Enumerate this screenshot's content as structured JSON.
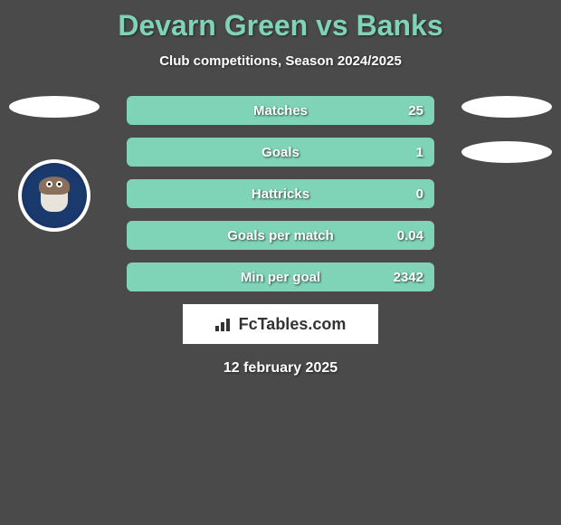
{
  "title": "Devarn Green vs Banks",
  "subtitle": "Club competitions, Season 2024/2025",
  "date": "12 february 2025",
  "footer_brand": "FcTables.com",
  "colors": {
    "accent": "#7fd4b8",
    "text": "#ffffff",
    "background": "#4a4a4a",
    "badge_primary": "#1a3a6e"
  },
  "stats": [
    {
      "label": "Matches",
      "value": "25",
      "fill_pct": 100
    },
    {
      "label": "Goals",
      "value": "1",
      "fill_pct": 100
    },
    {
      "label": "Hattricks",
      "value": "0",
      "fill_pct": 100
    },
    {
      "label": "Goals per match",
      "value": "0.04",
      "fill_pct": 100
    },
    {
      "label": "Min per goal",
      "value": "2342",
      "fill_pct": 100
    }
  ],
  "player_left": {
    "club_name_hint": "Oldham Athletic"
  }
}
